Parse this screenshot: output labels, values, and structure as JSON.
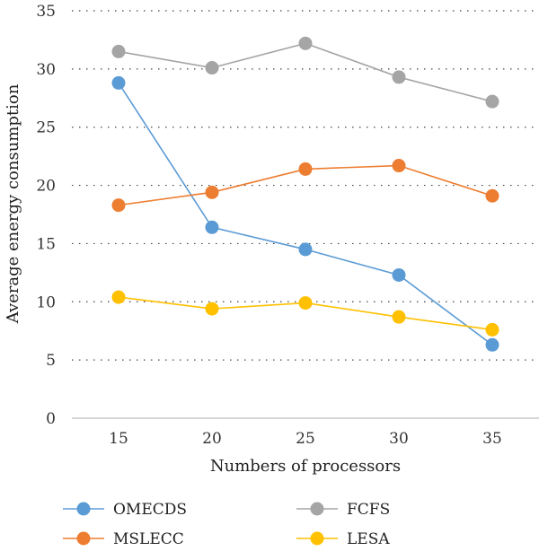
{
  "chart_data": {
    "type": "line",
    "title": "",
    "xlabel": "Numbers of processors",
    "ylabel": "Average energy consumption",
    "x": [
      15,
      20,
      25,
      30,
      35
    ],
    "ylim": [
      0,
      35
    ],
    "yticks": [
      0,
      5,
      10,
      15,
      20,
      25,
      30,
      35
    ],
    "grid": "horizontal dotted",
    "legend_position": "bottom",
    "series": [
      {
        "name": "OMECDS",
        "color": "#5b9bd5",
        "values": [
          28.8,
          16.4,
          14.5,
          12.3,
          6.3
        ]
      },
      {
        "name": "FCFS",
        "color": "#a5a5a5",
        "values": [
          31.5,
          30.1,
          32.2,
          29.3,
          27.2
        ]
      },
      {
        "name": "MSLECC",
        "color": "#ed7d31",
        "values": [
          18.3,
          19.4,
          21.4,
          21.7,
          19.1
        ]
      },
      {
        "name": "LESA",
        "color": "#ffc000",
        "values": [
          10.4,
          9.4,
          9.9,
          8.7,
          7.6
        ]
      }
    ]
  }
}
